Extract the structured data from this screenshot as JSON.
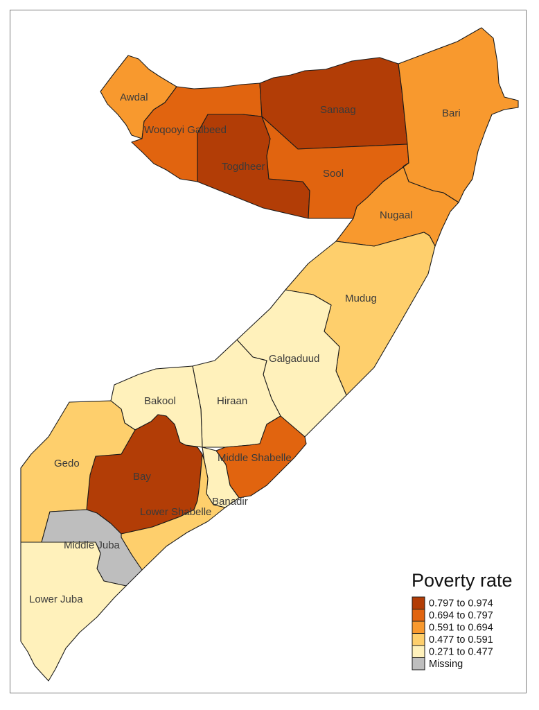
{
  "legend": {
    "title": "Poverty rate",
    "classes": [
      {
        "label": "0.797 to 0.974",
        "color": "#b23d06"
      },
      {
        "label": "0.694 to 0.797",
        "color": "#e1640f"
      },
      {
        "label": "0.591 to 0.694",
        "color": "#f8992e"
      },
      {
        "label": "0.477 to 0.591",
        "color": "#fecf6c"
      },
      {
        "label": "0.271 to 0.477",
        "color": "#fff1bb"
      },
      {
        "label": "Missing",
        "color": "#bebebe"
      }
    ]
  },
  "regions": [
    {
      "name": "Awdal",
      "class": 2
    },
    {
      "name": "Woqooyi Galbeed",
      "class": 1
    },
    {
      "name": "Togdheer",
      "class": 0
    },
    {
      "name": "Sanaag",
      "class": 0
    },
    {
      "name": "Sool",
      "class": 1
    },
    {
      "name": "Bari",
      "class": 2
    },
    {
      "name": "Nugaal",
      "class": 2
    },
    {
      "name": "Mudug",
      "class": 3
    },
    {
      "name": "Galgaduud",
      "class": 4
    },
    {
      "name": "Hiraan",
      "class": 4
    },
    {
      "name": "Bakool",
      "class": 4
    },
    {
      "name": "Middle Shabelle",
      "class": 1
    },
    {
      "name": "Bay",
      "class": 0
    },
    {
      "name": "Gedo",
      "class": 3
    },
    {
      "name": "Banadir",
      "class": 4
    },
    {
      "name": "Lower Shabelle",
      "class": 3
    },
    {
      "name": "Middle Juba",
      "class": 5
    },
    {
      "name": "Lower Juba",
      "class": 4
    }
  ]
}
